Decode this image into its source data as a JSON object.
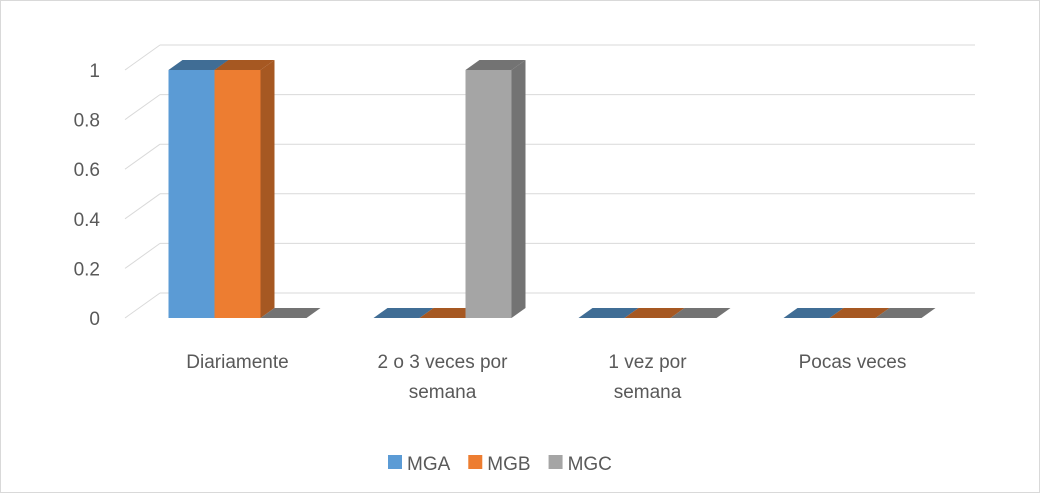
{
  "chart_data": {
    "type": "bar3d",
    "categories": [
      "Diariamente",
      "2 o 3 veces por semana",
      "1 vez por semana",
      "Pocas veces"
    ],
    "series": [
      {
        "name": "MGA",
        "color": "#5b9bd5",
        "values": [
          1,
          0,
          0,
          0
        ]
      },
      {
        "name": "MGB",
        "color": "#ed7d31",
        "values": [
          1,
          0,
          0,
          0
        ]
      },
      {
        "name": "MGC",
        "color": "#a5a5a5",
        "values": [
          0,
          1,
          0,
          0
        ]
      }
    ],
    "ylim": [
      0,
      1
    ],
    "yticks": [
      0,
      0.2,
      0.4,
      0.6,
      0.8,
      1
    ],
    "grid": true,
    "legend": "bottom"
  }
}
